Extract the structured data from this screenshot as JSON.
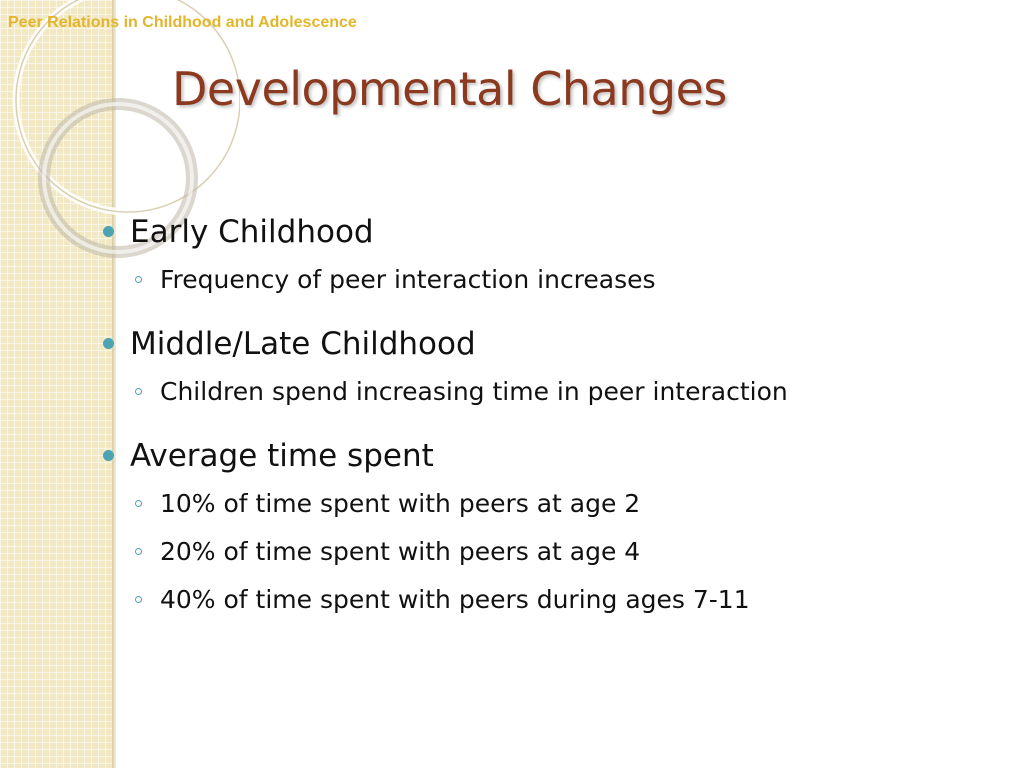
{
  "header": {
    "text": "Peer Relations in Childhood and Adolescence"
  },
  "title": "Developmental Changes",
  "bullets": [
    {
      "label": "Early Childhood",
      "sub": [
        "Frequency of peer interaction increases"
      ]
    },
    {
      "label": "Middle/Late Childhood",
      "sub": [
        "Children spend increasing time in peer interaction"
      ]
    },
    {
      "label": "Average time spent",
      "sub": [
        "10% of time spent with peers at age 2",
        "20% of time spent with peers at age 4",
        "40% of time spent with peers during ages 7-11"
      ]
    }
  ],
  "colors": {
    "title": "#8b3a1f",
    "header": "#e3b52a",
    "bullet": "#4ba3b3",
    "band": "#f2e8c4"
  }
}
